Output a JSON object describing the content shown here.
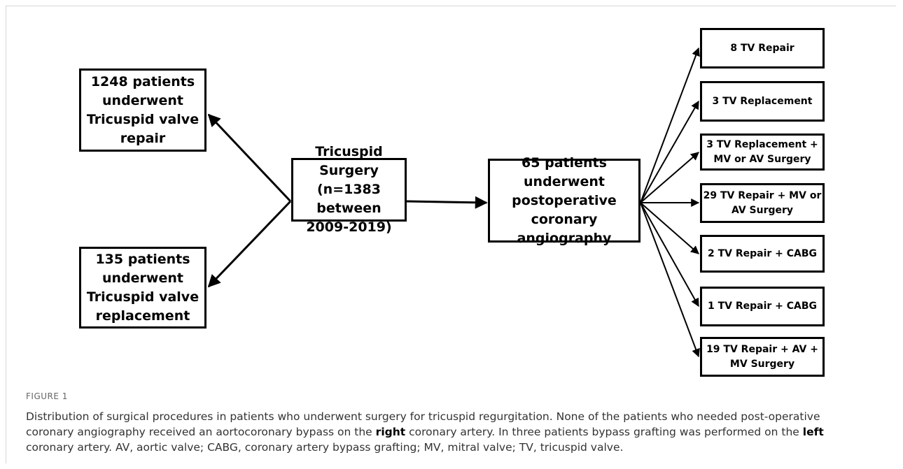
{
  "nodes": [
    {
      "lines": [
        "1248 patients",
        "underwent",
        "Tricuspid valve",
        "repair"
      ]
    },
    {
      "lines": [
        "135 patients",
        "underwent",
        "Tricuspid valve",
        "replacement"
      ]
    },
    {
      "lines": [
        "Tricuspid Surgery",
        "(n=1383 between",
        "2009-2019)"
      ]
    },
    {
      "lines": [
        "65 patients",
        "underwent",
        "postoperative",
        "coronary angiography"
      ]
    },
    {
      "lines": [
        "8 TV Repair"
      ]
    },
    {
      "lines": [
        "3 TV Replacement"
      ]
    },
    {
      "lines": [
        "3 TV Replacement +",
        "MV or AV Surgery"
      ]
    },
    {
      "lines": [
        "29 TV Repair + MV or",
        "AV Surgery"
      ]
    },
    {
      "lines": [
        "2 TV Repair + CABG"
      ]
    },
    {
      "lines": [
        "1 TV Repair + CABG"
      ]
    },
    {
      "lines": [
        "19 TV Repair + AV +",
        "MV Surgery"
      ]
    }
  ],
  "caption": {
    "label": "FIGURE 1",
    "parts": [
      "Distribution of surgical procedures in patients who underwent surgery for tricuspid regurgitation. None of the patients who needed post-operative coronary angiography received an aortocoronary bypass on the",
      "right",
      "coronary artery. In three patients bypass grafting was performed on the",
      "left",
      "coronary artery. AV, aortic valve; CABG, coronary artery bypass grafting; MV, mitral valve; TV, tricuspid valve."
    ]
  }
}
